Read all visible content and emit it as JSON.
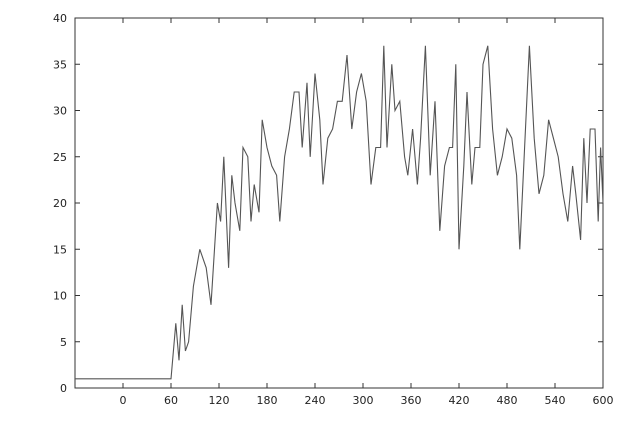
{
  "chart_data": {
    "type": "line",
    "title": "",
    "xlabel": "",
    "ylabel": "",
    "xlim": [
      -60,
      600
    ],
    "ylim": [
      0,
      40
    ],
    "xticks": [
      0,
      60,
      120,
      180,
      240,
      300,
      360,
      420,
      480,
      540,
      600
    ],
    "yticks": [
      0,
      5,
      10,
      15,
      20,
      25,
      30,
      35,
      40
    ],
    "grid": false,
    "line_color": "#555555",
    "series": [
      {
        "x": [
          -60,
          60,
          66,
          70,
          74,
          78,
          82,
          88,
          96,
          104,
          110,
          118,
          122,
          126,
          132,
          136,
          140,
          146,
          150,
          156,
          160,
          164,
          170,
          174,
          180,
          186,
          192,
          196,
          202,
          208,
          214,
          220,
          224,
          230,
          234,
          240,
          246,
          250,
          256,
          262,
          268,
          274,
          280,
          286,
          292,
          298,
          304,
          310,
          316,
          322,
          326,
          330,
          336,
          340,
          346,
          352,
          356,
          362,
          368,
          372,
          378,
          384,
          390,
          396,
          402,
          408,
          412,
          416,
          420,
          426,
          430,
          436,
          440,
          446,
          450,
          456,
          462,
          468,
          474,
          480,
          486,
          492,
          496,
          502,
          508,
          514,
          520,
          526,
          532,
          538,
          544,
          550,
          556,
          562,
          566,
          572,
          576,
          580,
          584,
          590,
          594,
          597,
          600
        ],
        "y": [
          1,
          1,
          7,
          3,
          9,
          4,
          5,
          11,
          15,
          13,
          9,
          20,
          18,
          25,
          13,
          23,
          20,
          17,
          26,
          25,
          18,
          22,
          19,
          29,
          26,
          24,
          23,
          18,
          25,
          28,
          32,
          32,
          26,
          33,
          25,
          34,
          29,
          22,
          27,
          28,
          31,
          31,
          36,
          28,
          32,
          34,
          31,
          22,
          26,
          26,
          37,
          26,
          35,
          30,
          31,
          25,
          23,
          28,
          22,
          27,
          37,
          23,
          31,
          17,
          24,
          26,
          26,
          35,
          15,
          24,
          32,
          22,
          26,
          26,
          35,
          37,
          28,
          23,
          25,
          28,
          27,
          23,
          15,
          26,
          37,
          27,
          21,
          23,
          29,
          27,
          25,
          21,
          18,
          24,
          21,
          16,
          27,
          20,
          28,
          28,
          18,
          26,
          20
        ]
      }
    ]
  }
}
